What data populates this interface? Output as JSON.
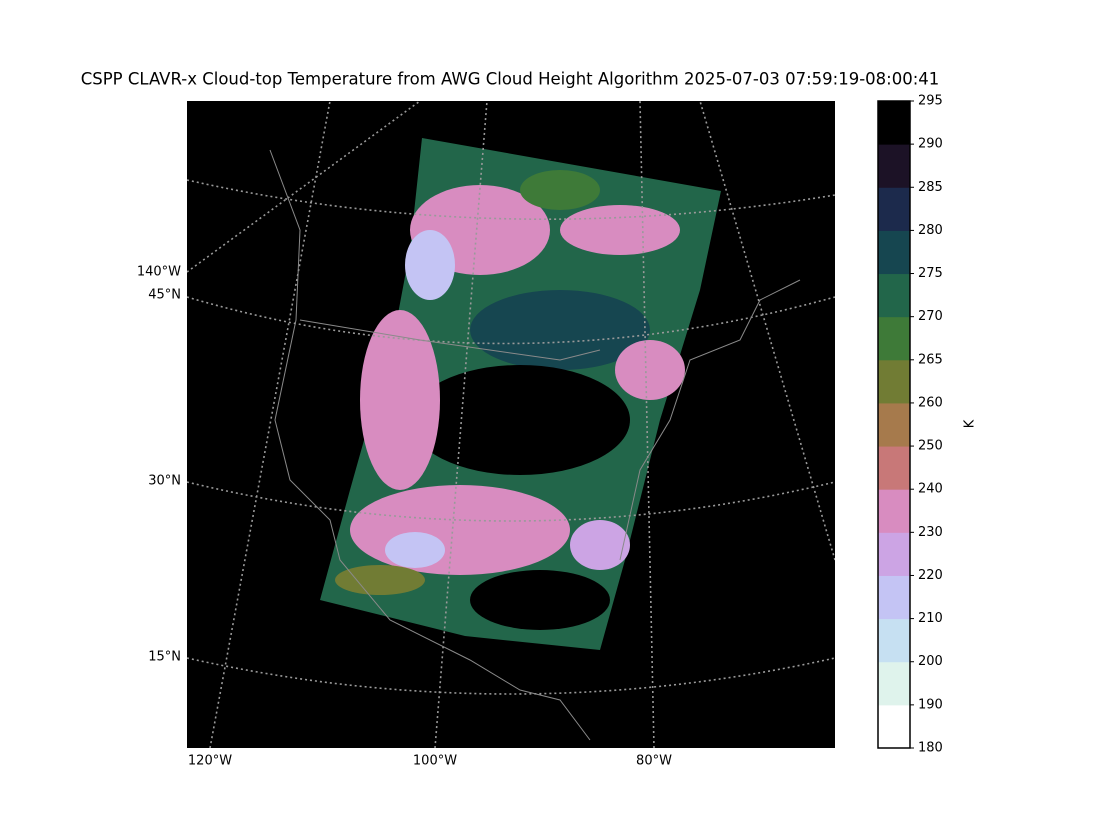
{
  "map": {
    "title": "CSPP CLAVR-x Cloud-top Temperature from AWG Cloud Height Algorithm 2025-07-03 07:59:19-08:00:41",
    "lat_labels": [
      "140°W",
      "45°N",
      "30°N",
      "15°N"
    ],
    "lon_labels": [
      "120°W",
      "100°W",
      "80°W"
    ]
  },
  "colorbar": {
    "label": "K",
    "ticks": [
      180,
      190,
      200,
      210,
      220,
      230,
      240,
      250,
      260,
      265,
      270,
      275,
      280,
      285,
      290,
      295
    ],
    "colors": [
      "#ffffff",
      "#dff3ec",
      "#c6e0f2",
      "#c4c4f4",
      "#cca4e4",
      "#d88cc0",
      "#c87878",
      "#a67a4c",
      "#717c34",
      "#3e7a38",
      "#22664a",
      "#164650",
      "#1c2a4c",
      "#1c1226",
      "#000000"
    ]
  }
}
